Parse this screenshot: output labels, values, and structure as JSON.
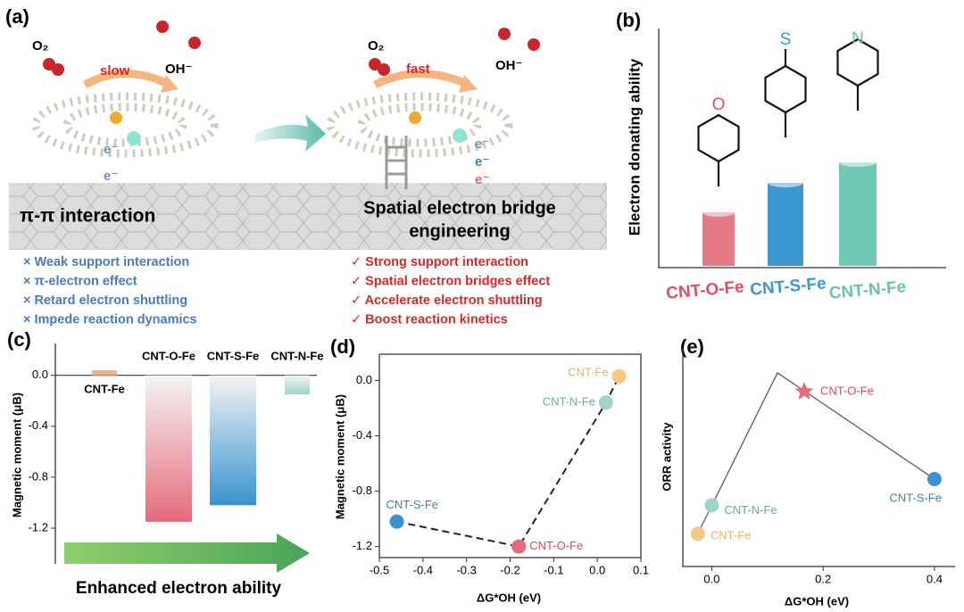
{
  "diagram": {
    "panel_a": {
      "label": "(a)",
      "o2_left": "O₂",
      "oh_left": "OH⁻",
      "slow": "slow",
      "o2_right": "O₂",
      "oh_right": "OH⁻",
      "fast": "fast",
      "electrons_left": [
        "e⁻",
        "e⁻"
      ],
      "electrons_right": [
        "e⁻",
        "e⁻",
        "e⁻"
      ],
      "left_title": "π-π interaction",
      "right_title": [
        "Spatial electron bridge",
        "engineering"
      ],
      "left_points": [
        "× Weak support interaction",
        "× π-electron effect",
        "× Retard electron shuttling",
        "× Impede reaction dynamics"
      ],
      "right_points": [
        "✓ Strong support interaction",
        "✓ Spatial electron bridges effect",
        "✓ Accelerate electron shuttling",
        "✓ Boost reaction kinetics"
      ]
    },
    "panel_b": {
      "label": "(b)",
      "ylabel": "Electron donating ability",
      "atoms": [
        "O",
        "S",
        "N"
      ],
      "names": [
        "CNT-O-Fe",
        "CNT-S-Fe",
        "CNT-N-Fe"
      ]
    }
  },
  "chart_data": [
    {
      "type": "bar",
      "label": "(c)",
      "ylabel": "Magnetic moment (μB)",
      "categories": [
        "CNT-Fe",
        "CNT-O-Fe",
        "CNT-S-Fe",
        "CNT-N-Fe"
      ],
      "values": [
        0.04,
        -1.15,
        -1.02,
        -0.15
      ],
      "colors": [
        "#f4b183",
        "#e56b7b",
        "#3a93cf",
        "#9fd5c8"
      ],
      "ylim": [
        -1.48,
        0.25
      ],
      "yticks": [
        {
          "value": 0,
          "label": "0.0"
        },
        -0.4,
        -0.8,
        -1.2
      ],
      "annotation": "Enhanced electron ability"
    },
    {
      "type": "scatter",
      "label": "(d)",
      "ylabel": "Magnetic moment (μB)",
      "xlabel": "ΔG*OH (eV)",
      "xlim": [
        -0.5,
        0.1
      ],
      "xticks": [
        -0.5,
        -0.4,
        -0.3,
        -0.2,
        -0.1,
        {
          "value": 0,
          "label": "0.0"
        },
        0.1
      ],
      "ylim": [
        -1.28,
        0.19
      ],
      "yticks": [
        {
          "value": 0,
          "label": "0.0"
        },
        -0.4,
        -0.8,
        -1.2
      ],
      "connect": "dashed",
      "series": [
        {
          "name": "CNT-S-Fe",
          "color": "#3a93cf",
          "x": [
            -0.46
          ],
          "values": [
            -1.02
          ]
        },
        {
          "name": "CNT-O-Fe",
          "color": "#e56b7b",
          "x": [
            -0.18
          ],
          "values": [
            -1.2
          ]
        },
        {
          "name": "CNT-N-Fe",
          "color": "#9fd5c8",
          "x": [
            0.02
          ],
          "values": [
            -0.16
          ]
        },
        {
          "name": "CNT-Fe",
          "color": "#f7c87f",
          "x": [
            0.05
          ],
          "values": [
            0.03
          ]
        }
      ]
    },
    {
      "type": "scatter",
      "label": "(e)",
      "ylabel": "ORR activity",
      "xlabel": "ΔG*OH (eV)",
      "xlim": [
        -0.052,
        0.437
      ],
      "xticks": [
        {
          "value": 0,
          "label": "0.0"
        },
        0.2,
        0.4
      ],
      "ylim": [
        0,
        1
      ],
      "yticks": [],
      "volcano": {
        "x": [
          -0.025,
          0.118,
          0.4
        ],
        "values": [
          0.15,
          0.886,
          0.4
        ]
      },
      "series": [
        {
          "name": "CNT-Fe",
          "color": "#f7c87f",
          "x": [
            -0.025
          ],
          "values": [
            0.15
          ]
        },
        {
          "name": "CNT-N-Fe",
          "color": "#9fd5c8",
          "x": [
            0.0
          ],
          "values": [
            0.28
          ]
        },
        {
          "name": "CNT-O-Fe",
          "color": "#e56b7b",
          "x": [
            0.166
          ],
          "values": [
            0.8
          ],
          "marker": "star"
        },
        {
          "name": "CNT-S-Fe",
          "color": "#3a93cf",
          "x": [
            0.4
          ],
          "values": [
            0.4
          ]
        }
      ]
    }
  ]
}
